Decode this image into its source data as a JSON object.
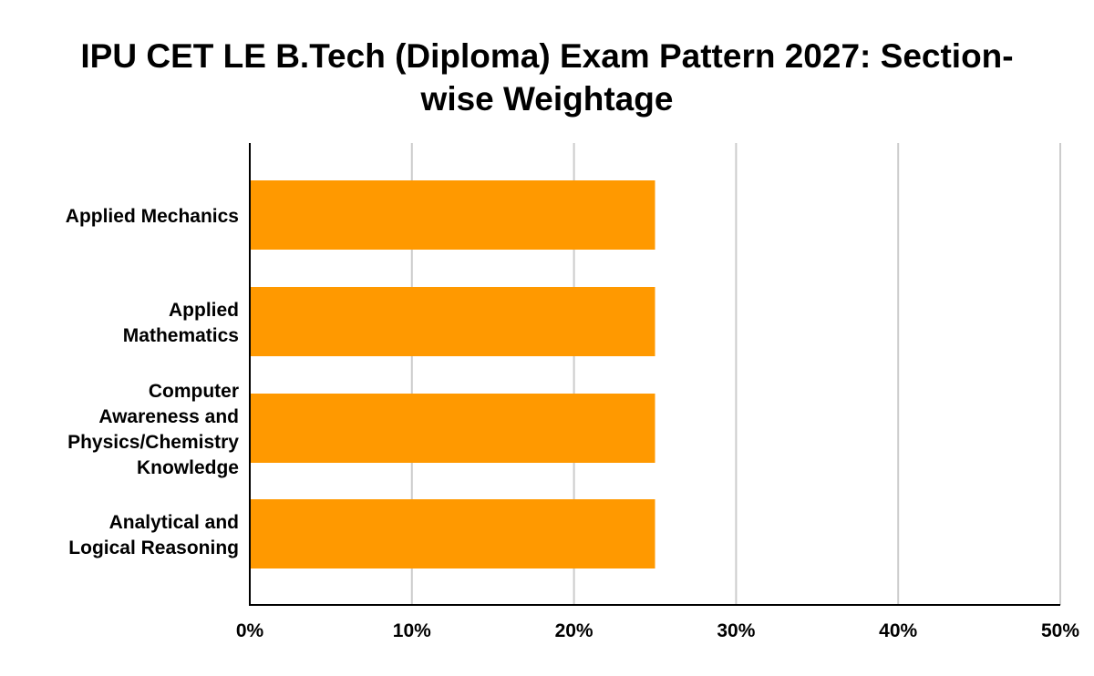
{
  "chart_data": {
    "type": "bar",
    "orientation": "horizontal",
    "title": "IPU CET LE B.Tech (Diploma) Exam Pattern 2027: Section-wise Weightage",
    "title_lines": [
      "IPU CET LE B.Tech (Diploma) Exam Pattern 2027: Section-",
      "wise Weightage"
    ],
    "categories": [
      "Applied Mechanics",
      "Applied Mathematics",
      "Computer Awareness and Physics/Chemistry Knowledge",
      "Analytical and Logical Reasoning"
    ],
    "category_lines": [
      [
        "Applied Mechanics"
      ],
      [
        "Applied",
        "Mathematics"
      ],
      [
        "Computer",
        "Awareness and",
        "Physics/Chemistry",
        "Knowledge"
      ],
      [
        "Analytical and",
        "Logical Reasoning"
      ]
    ],
    "values": [
      25,
      25,
      25,
      25
    ],
    "unit": "%",
    "xlim": [
      0,
      50
    ],
    "xticks": [
      0,
      10,
      20,
      30,
      40,
      50
    ],
    "xtick_labels": [
      "0%",
      "10%",
      "20%",
      "30%",
      "40%",
      "50%"
    ],
    "xlabel": "",
    "ylabel": "",
    "grid": true,
    "legend": "none",
    "colors": {
      "bar": "#ff9900",
      "grid": "#cccccc",
      "axis": "#000000",
      "text": "#000000"
    }
  }
}
